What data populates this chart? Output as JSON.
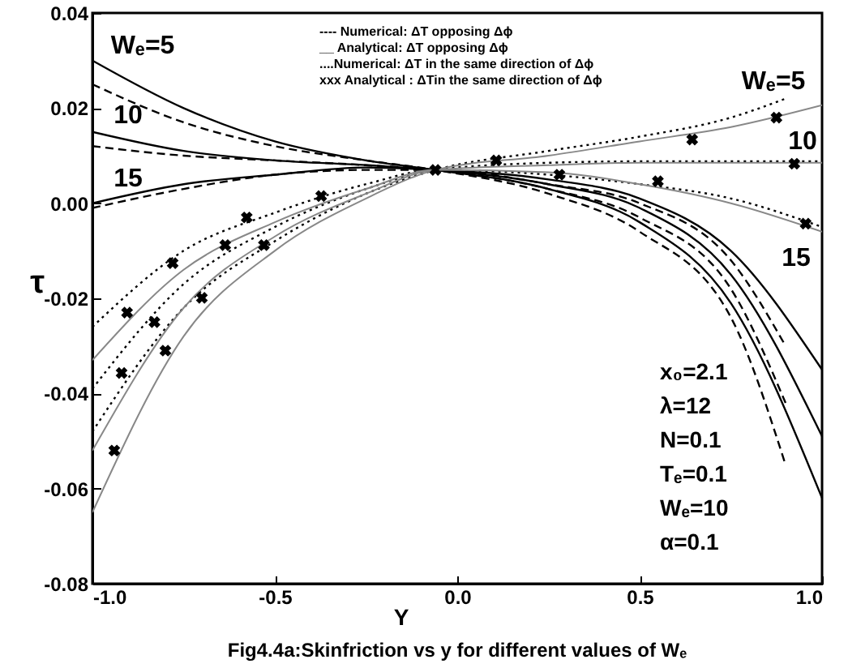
{
  "chart_data": {
    "type": "line",
    "title": "Fig4.4a:Skinfriction vs y for different values of Wₑ",
    "xlabel": "Y",
    "ylabel": "τ",
    "xlim": [
      -1,
      1
    ],
    "ylim": [
      -0.08,
      0.04
    ],
    "xticks": [
      {
        "value": -1,
        "label": "-1.0"
      },
      {
        "value": -0.5,
        "label": "-0.5"
      },
      {
        "value": 0,
        "label": "0.0"
      },
      {
        "value": 0.5,
        "label": "0.5"
      },
      {
        "value": 1,
        "label": "1.0"
      }
    ],
    "yticks": [
      {
        "value": -0.08,
        "label": "-0.08"
      },
      {
        "value": -0.06,
        "label": "-0.06"
      },
      {
        "value": -0.04,
        "label": "-0.04"
      },
      {
        "value": -0.02,
        "label": "-0.02"
      },
      {
        "value": 0,
        "label": "0.00"
      },
      {
        "value": 0.02,
        "label": "0.02"
      },
      {
        "value": 0.04,
        "label": "0.04"
      }
    ],
    "x": [
      -1,
      -0.75,
      -0.5,
      -0.25,
      -0.06,
      0.25,
      0.5,
      0.75,
      1
    ],
    "series": [
      {
        "color": "#000000",
        "line_style": "solid",
        "values": [
          0.03,
          0.02,
          0.013,
          0.009,
          0.007,
          0.003,
          -0.004,
          -0.021,
          -0.062
        ]
      },
      {
        "color": "#000000",
        "line_style": "solid",
        "values": [
          0.015,
          0.011,
          0.009,
          0.008,
          0.007,
          0.004,
          -0.001,
          -0.015,
          -0.049
        ]
      },
      {
        "color": "#000000",
        "line_style": "solid",
        "values": [
          0.0,
          0.004,
          0.006,
          0.0075,
          0.007,
          0.005,
          0.001,
          -0.01,
          -0.035
        ]
      },
      {
        "color": "#000000",
        "line_style": "dashed",
        "x": [
          -1,
          -0.75,
          -0.5,
          -0.25,
          -0.06,
          0.25,
          0.5,
          0.75,
          0.9
        ],
        "values": [
          0.025,
          0.017,
          0.012,
          0.009,
          0.007,
          0.002,
          -0.006,
          -0.024,
          -0.055
        ]
      },
      {
        "color": "#000000",
        "line_style": "dashed",
        "x": [
          -1,
          -0.75,
          -0.5,
          -0.25,
          -0.06,
          0.25,
          0.5,
          0.75,
          0.9
        ],
        "values": [
          0.012,
          0.01,
          0.009,
          0.008,
          0.007,
          0.003,
          -0.003,
          -0.018,
          -0.042
        ]
      },
      {
        "color": "#000000",
        "line_style": "dashed",
        "x": [
          -1,
          -0.75,
          -0.5,
          -0.25,
          -0.06,
          0.25,
          0.5,
          0.75,
          0.9
        ],
        "values": [
          -0.001,
          0.003,
          0.006,
          0.007,
          0.007,
          0.004,
          0.0,
          -0.012,
          -0.03
        ]
      },
      {
        "color": "#000000",
        "line_style": "dotted",
        "x": [
          -1,
          -0.75,
          -0.5,
          -0.25,
          -0.06,
          0.25,
          0.5,
          0.75,
          0.9
        ],
        "values": [
          -0.048,
          -0.022,
          -0.008,
          0.002,
          0.007,
          0.011,
          0.014,
          0.018,
          0.022
        ]
      },
      {
        "color": "#000000",
        "line_style": "dotted",
        "values": [
          -0.039,
          -0.017,
          -0.005,
          0.003,
          0.007,
          0.0085,
          0.0088,
          0.0088,
          0.0088
        ]
      },
      {
        "color": "#000000",
        "line_style": "dotted",
        "values": [
          -0.026,
          -0.01,
          -0.002,
          0.004,
          0.007,
          0.006,
          0.004,
          0.001,
          -0.005
        ]
      },
      {
        "color": "#888888",
        "line_style": "solid",
        "values": [
          -0.065,
          -0.028,
          -0.01,
          0.001,
          0.007,
          0.01,
          0.013,
          0.016,
          0.0206
        ]
      },
      {
        "color": "#888888",
        "line_style": "solid",
        "values": [
          -0.052,
          -0.022,
          -0.007,
          0.002,
          0.007,
          0.008,
          0.0085,
          0.0085,
          0.0085
        ]
      },
      {
        "color": "#888888",
        "line_style": "solid",
        "values": [
          -0.033,
          -0.014,
          -0.004,
          0.003,
          0.007,
          0.0065,
          0.004,
          0.0,
          -0.006
        ]
      },
      {
        "type": "scatter",
        "marker": "cross",
        "color": "#000000",
        "x": [
          -0.94,
          -0.92,
          -0.905,
          -0.83,
          -0.8,
          -0.78,
          -0.7,
          -0.636,
          -0.577,
          -0.53,
          -0.373,
          -0.06,
          0.107,
          0.28,
          0.55,
          0.644,
          0.875,
          0.924,
          0.955
        ],
        "values": [
          -0.052,
          -0.0357,
          -0.023,
          -0.025,
          -0.031,
          -0.0126,
          -0.0199,
          -0.0088,
          -0.003,
          -0.0088,
          0.0015,
          0.007,
          0.009,
          0.006,
          0.0046,
          0.0134,
          0.018,
          0.0083,
          -0.0043
        ]
      }
    ],
    "annotations": [
      "---- Numerical: ΔT opposing Δϕ",
      "__ Analytical: ΔT opposing Δϕ",
      "....Numerical: ΔT in the same direction of Δϕ",
      "xxx Analytical : ΔTin the same direction of Δϕ",
      "x₀=2.1",
      "λ=12",
      "N=0.1",
      "Tₑ=0.1",
      "Wₑ=10",
      "α=0.1",
      "Wₑ=5",
      "10",
      "15",
      "Wₑ=5",
      "10",
      "15"
    ]
  }
}
